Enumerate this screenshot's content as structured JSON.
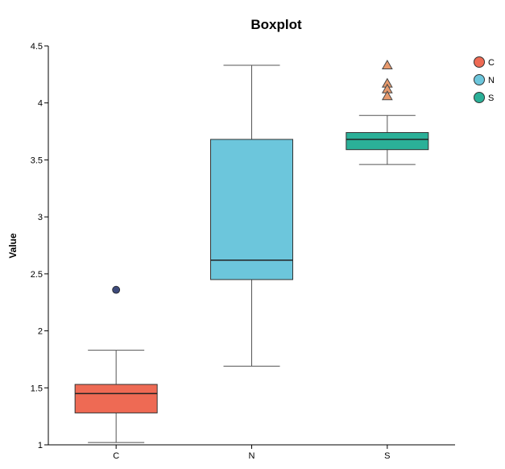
{
  "chart_data": {
    "type": "boxplot",
    "title": "Boxplot",
    "xlabel": "",
    "ylabel": "Value",
    "ylim": [
      1,
      4.5
    ],
    "yticks": [
      "1",
      "1.5",
      "2",
      "2.5",
      "3",
      "3.5",
      "4",
      "4.5"
    ],
    "categories": [
      "C",
      "N",
      "S"
    ],
    "series": [
      {
        "name": "C",
        "color": "#ee6a54",
        "whisker_low": 1.02,
        "q1": 1.28,
        "median": 1.45,
        "q3": 1.53,
        "whisker_high": 1.83,
        "outliers": [
          2.36
        ],
        "outlier_marker": "circle",
        "outlier_color": "#3d4a7a"
      },
      {
        "name": "N",
        "color": "#6cc6dc",
        "whisker_low": 1.69,
        "q1": 2.45,
        "median": 2.62,
        "q3": 3.68,
        "whisker_high": 4.33,
        "outliers": [],
        "outlier_marker": "circle",
        "outlier_color": "#3d4a7a"
      },
      {
        "name": "S",
        "color": "#2bb098",
        "whisker_low": 3.46,
        "q1": 3.59,
        "median": 3.68,
        "q3": 3.74,
        "whisker_high": 3.89,
        "outliers": [
          4.33,
          4.17,
          4.12,
          4.06
        ],
        "outlier_marker": "triangle",
        "outlier_color": "#e89a6d"
      }
    ],
    "legend": {
      "position": "top-right",
      "entries": [
        "C",
        "N",
        "S"
      ]
    },
    "grid": false
  }
}
